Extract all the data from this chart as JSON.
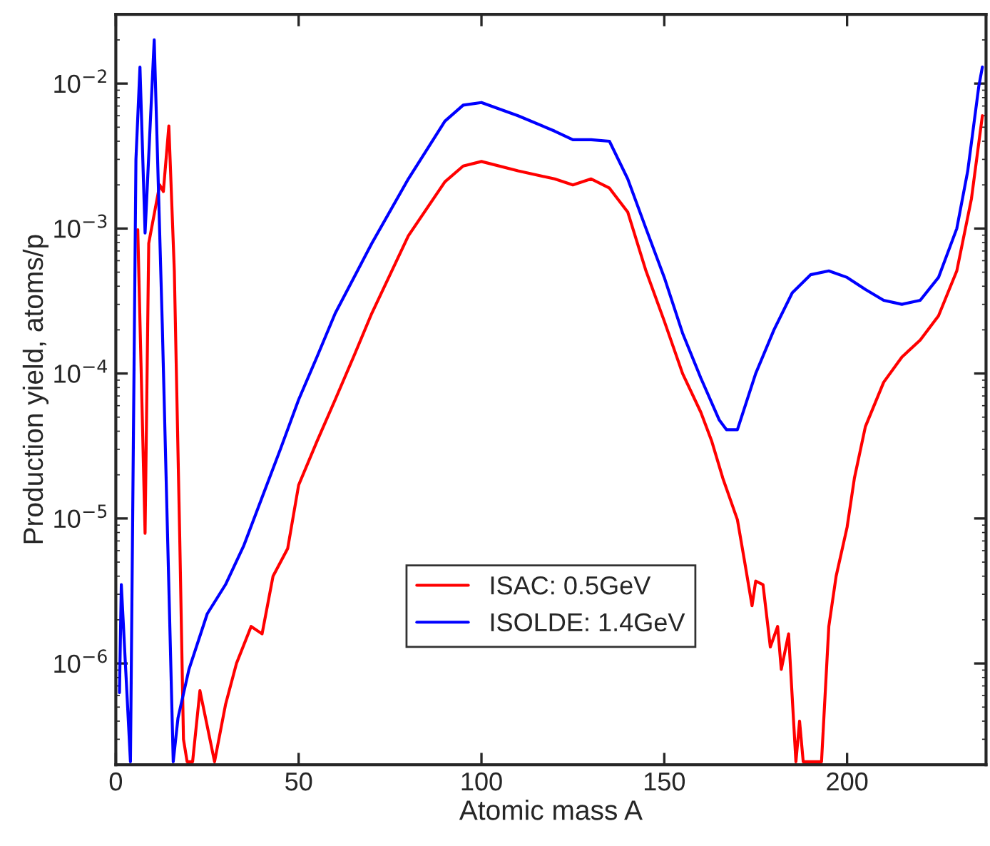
{
  "chart_data": {
    "type": "line",
    "xlabel": "Atomic mass A",
    "ylabel": "Production yield, atoms/p",
    "log": "y",
    "grid": false,
    "legend": "bottom",
    "marker": "none",
    "line_style": "solid",
    "xlim": [
      0,
      238
    ],
    "ylim": [
      2e-07,
      0.03
    ],
    "xticks": [
      0,
      50,
      100,
      150,
      200
    ],
    "yticks": [
      {
        "value": 1e-06,
        "label": "10$^{−6}$"
      },
      {
        "value": 1e-05,
        "label": "10$^{−5}$"
      },
      {
        "value": 0.0001,
        "label": "10$^{−4}$"
      },
      {
        "value": 0.001,
        "label": "10$^{−3}$"
      },
      {
        "value": 0.01,
        "label": "10$^{−2}$"
      }
    ],
    "series": [
      {
        "name": "ISAC: 0.5GeV",
        "color": "#ff0000",
        "x": [
          6,
          8,
          9,
          12,
          13,
          14.5,
          16,
          17.5,
          18.5,
          19.5,
          21,
          23,
          27,
          30,
          33,
          37,
          40,
          43,
          47,
          50,
          55,
          60,
          65,
          70,
          80,
          90,
          95,
          100,
          110,
          120,
          125,
          130,
          135,
          140,
          145,
          150,
          155,
          160,
          163,
          166,
          170,
          172,
          174,
          175,
          177,
          179,
          181,
          182,
          184,
          186,
          187,
          188,
          193,
          195,
          197,
          200,
          202,
          205,
          210,
          215,
          220,
          225,
          230,
          234,
          237
        ],
        "values": [
          0.00098,
          7.9e-06,
          0.00079,
          0.002,
          0.0018,
          0.0051,
          0.00051,
          6.9e-06,
          3e-07,
          2.1e-07,
          2.1e-07,
          6.5e-07,
          2.1e-07,
          5.2e-07,
          1e-06,
          1.8e-06,
          1.6e-06,
          4e-06,
          6.2e-06,
          1.7e-05,
          3.4e-05,
          6.6e-05,
          0.00013,
          0.00026,
          0.00089,
          0.0021,
          0.0027,
          0.0029,
          0.0025,
          0.0022,
          0.002,
          0.0022,
          0.0019,
          0.0013,
          0.00051,
          0.00023,
          0.0001,
          5.4e-05,
          3.4e-05,
          1.9e-05,
          9.8e-06,
          5e-06,
          2.5e-06,
          3.7e-06,
          3.5e-06,
          1.3e-06,
          1.8e-06,
          9.1e-07,
          1.6e-06,
          2.1e-07,
          4e-07,
          2.1e-07,
          2.1e-07,
          1.8e-06,
          4e-06,
          8.7e-06,
          1.9e-05,
          4.3e-05,
          8.7e-05,
          0.00013,
          0.00017,
          0.00025,
          0.00051,
          0.0016,
          0.006
        ]
      },
      {
        "name": "ISOLDE: 1.4GeV",
        "color": "#0000ff",
        "x": [
          1,
          1.5,
          4,
          5.5,
          6.6,
          8,
          10.5,
          12.7,
          15.7,
          17,
          20,
          25,
          30,
          35,
          40,
          45,
          50,
          55,
          60,
          70,
          80,
          90,
          95,
          100,
          110,
          120,
          125,
          130,
          135,
          140,
          145,
          150,
          155,
          160,
          165,
          167,
          170,
          175,
          180,
          185,
          190,
          195,
          200,
          205,
          210,
          215,
          220,
          225,
          230,
          233,
          236,
          237
        ],
        "values": [
          6.3e-07,
          3.5e-06,
          2.1e-07,
          0.003,
          0.013,
          0.00093,
          0.02,
          0.00022,
          2.1e-07,
          4.2e-07,
          9.1e-07,
          2.2e-06,
          3.5e-06,
          6.5e-06,
          1.4e-05,
          3e-05,
          6.6e-05,
          0.00013,
          0.00026,
          0.00079,
          0.0022,
          0.0055,
          0.0071,
          0.0074,
          0.006,
          0.0047,
          0.0041,
          0.0041,
          0.004,
          0.0022,
          0.001,
          0.00046,
          0.00019,
          9.3e-05,
          4.8e-05,
          4.1e-05,
          4.1e-05,
          0.0001,
          0.0002,
          0.00036,
          0.00048,
          0.00051,
          0.00046,
          0.00038,
          0.00032,
          0.0003,
          0.00032,
          0.00046,
          0.001,
          0.0025,
          0.0095,
          0.013
        ]
      }
    ]
  }
}
